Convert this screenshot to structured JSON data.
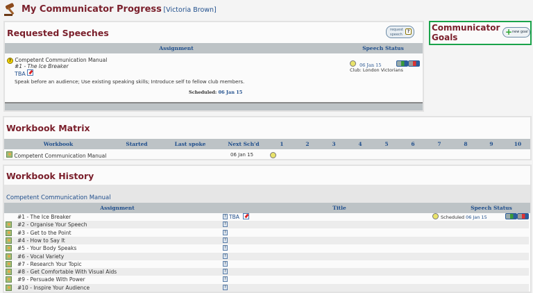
{
  "header": {
    "title": "My Communicator Progress",
    "user": "[Victoria Brown]",
    "icon": "gavel-icon"
  },
  "requested": {
    "title": "Requested Speeches",
    "request_button": "request speech",
    "columns": [
      "Assignment",
      "Speech Status"
    ],
    "item": {
      "manual": "Competent Communication Manual",
      "project": "#1 - The Ice Breaker",
      "title": "TBA",
      "objectives": "Speak before an audience; Use existing speaking skills; Introduce self to fellow club members.",
      "scheduled_label": "Scheduled:",
      "scheduled_date": "06 Jan 15",
      "status_date": "06 Jan 15",
      "club": "Club: London Victorians"
    }
  },
  "goals": {
    "title": "Communicator Goals",
    "new_goal": "new goal"
  },
  "matrix": {
    "title": "Workbook Matrix",
    "columns": [
      "Workbook",
      "Started",
      "Last spoke",
      "Next Sch'd",
      "1",
      "2",
      "3",
      "4",
      "5",
      "6",
      "7",
      "8",
      "9",
      "10"
    ],
    "rows": [
      {
        "workbook": "Competent Communication Manual",
        "started": "",
        "last_spoke": "",
        "next": "06 Jan 15"
      }
    ]
  },
  "history": {
    "title": "Workbook History",
    "manual": "Competent Communication Manual",
    "columns": [
      "Assignment",
      "Title",
      "Speech Status"
    ],
    "rows": [
      {
        "assignment": "#1 - The Ice Breaker",
        "title": "TBA",
        "status": "Scheduled",
        "date": "06 Jan 15"
      },
      {
        "assignment": "#2 - Organise Your Speech"
      },
      {
        "assignment": "#3 - Get to the Point"
      },
      {
        "assignment": "#4 - How to Say It"
      },
      {
        "assignment": "#5 - Your Body Speaks"
      },
      {
        "assignment": "#6 - Vocal Variety"
      },
      {
        "assignment": "#7 - Research Your Topic"
      },
      {
        "assignment": "#8 - Get Comfortable With Visual Aids"
      },
      {
        "assignment": "#9 - Persuade With Power"
      },
      {
        "assignment": "#10 - Inspire Your Audience"
      }
    ]
  },
  "colors": {
    "heading": "#7a1f2b",
    "link": "#1f4e8c",
    "table_header": "#bdc3c6",
    "goals_border": "#1aa34a"
  }
}
